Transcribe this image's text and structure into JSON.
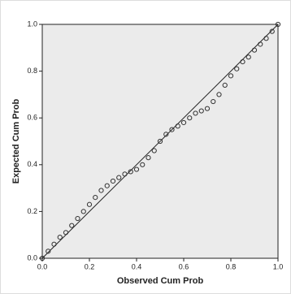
{
  "chart_data": {
    "type": "scatter",
    "x_label": "Observed Cum Prob",
    "y_label": "Expected Cum Prob",
    "xlim": [
      0,
      1
    ],
    "ylim": [
      0,
      1
    ],
    "xticks": [
      {
        "value": 0,
        "label": "0.0"
      },
      0.2,
      0.4,
      0.6,
      0.8,
      {
        "value": 1,
        "label": "1.0"
      }
    ],
    "yticks": [
      {
        "value": 0,
        "label": "0.0"
      },
      0.2,
      0.4,
      0.6,
      0.8,
      {
        "value": 1,
        "label": "1.0"
      }
    ],
    "color": "#333333",
    "x": [
      0,
      0.025,
      0.05,
      0.075,
      0.1,
      0.125,
      0.15,
      0.175,
      0.2,
      0.225,
      0.25,
      0.275,
      0.3,
      0.325,
      0.35,
      0.375,
      0.4,
      0.425,
      0.45,
      0.475,
      0.5,
      0.525,
      0.55,
      0.575,
      0.6,
      0.625,
      0.65,
      0.675,
      0.7,
      0.725,
      0.75,
      0.775,
      0.8,
      0.825,
      0.85,
      0.875,
      0.9,
      0.925,
      0.95,
      0.975,
      1
    ],
    "values": [
      0,
      0.03,
      0.06,
      0.09,
      0.11,
      0.14,
      0.17,
      0.2,
      0.23,
      0.26,
      0.29,
      0.31,
      0.33,
      0.345,
      0.36,
      0.37,
      0.38,
      0.4,
      0.43,
      0.46,
      0.5,
      0.53,
      0.55,
      0.565,
      0.58,
      0.6,
      0.62,
      0.63,
      0.64,
      0.67,
      0.7,
      0.74,
      0.78,
      0.81,
      0.84,
      0.86,
      0.89,
      0.915,
      0.94,
      0.97,
      1
    ]
  }
}
